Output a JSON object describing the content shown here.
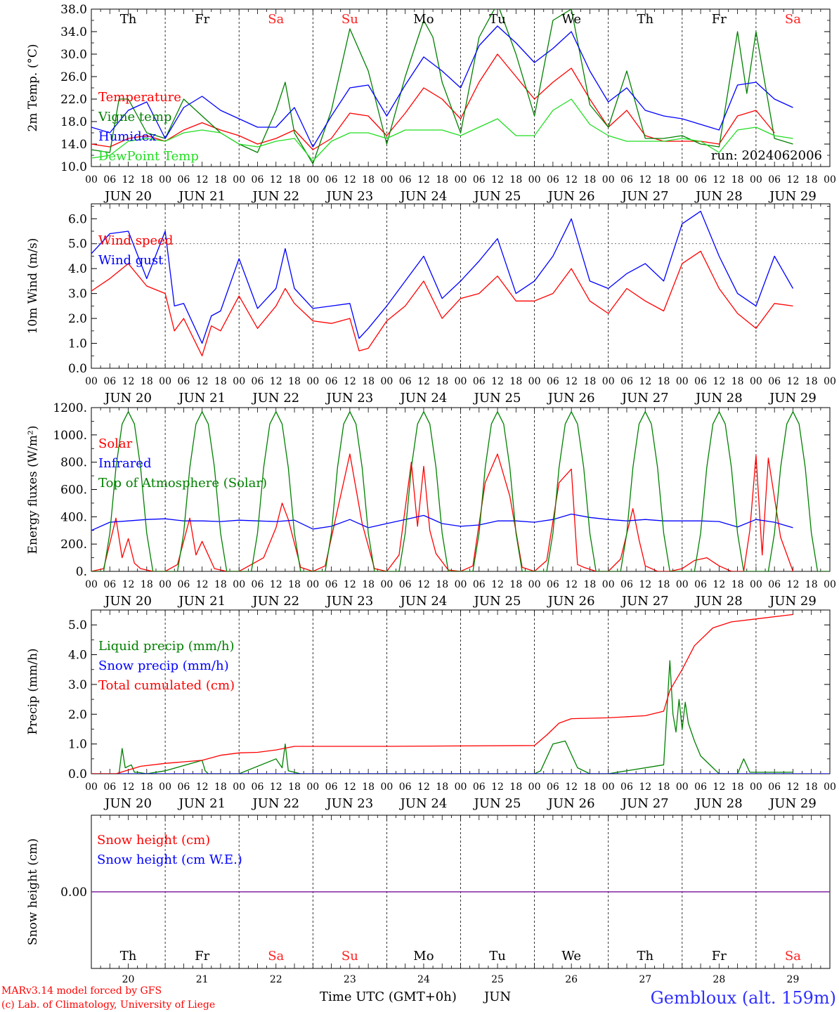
{
  "run_label": "run: 2024062006",
  "footer": {
    "credit_line1": "MARv3.14 model forced by GFS",
    "credit_line2": "(c) Lab. of Climatology, University of Liege",
    "xlabel": "Time UTC (GMT+0h)",
    "month": "JUN",
    "station": "Gembloux (alt. 159m)"
  },
  "days": [
    {
      "abbr": "Th",
      "date": "20",
      "weekend": false
    },
    {
      "abbr": "Fr",
      "date": "21",
      "weekend": false
    },
    {
      "abbr": "Sa",
      "date": "22",
      "weekend": true
    },
    {
      "abbr": "Su",
      "date": "23",
      "weekend": true
    },
    {
      "abbr": "Mo",
      "date": "24",
      "weekend": false
    },
    {
      "abbr": "Tu",
      "date": "25",
      "weekend": false
    },
    {
      "abbr": "We",
      "date": "26",
      "weekend": false
    },
    {
      "abbr": "Th",
      "date": "27",
      "weekend": false
    },
    {
      "abbr": "Fr",
      "date": "28",
      "weekend": false
    },
    {
      "abbr": "Sa",
      "date": "29",
      "weekend": true
    }
  ],
  "hour_ticks": [
    "00",
    "06",
    "12",
    "18"
  ],
  "day_labels": [
    "JUN 20",
    "JUN 21",
    "JUN 22",
    "JUN 23",
    "JUN 24",
    "JUN 25",
    "JUN 26",
    "JUN 27",
    "JUN 28",
    "JUN 29"
  ],
  "colors": {
    "red": "#ff0000",
    "green": "#008000",
    "blue": "#0000ff",
    "lime": "#22dd22",
    "weekend": "#ff2020",
    "purple": "#8020a0",
    "station": "#3030ff"
  },
  "chart_data": [
    {
      "type": "line",
      "ylabel": "2m Temp. (°C)",
      "ylim": [
        10,
        38
      ],
      "yticks": [
        "10.0",
        "14.0",
        "18.0",
        "22.0",
        "26.0",
        "30.0",
        "34.0",
        "38.0"
      ],
      "x_unit": "hours from JUN 20 00 UTC",
      "series": [
        {
          "name": "Temperature",
          "color": "#ff0000",
          "x": [
            0,
            6,
            12,
            18,
            24,
            30,
            36,
            42,
            48,
            54,
            60,
            66,
            72,
            78,
            84,
            90,
            96,
            102,
            108,
            114,
            120,
            126,
            132,
            138,
            144,
            150,
            156,
            162,
            168,
            174,
            180,
            186,
            192,
            198,
            204,
            210,
            216,
            222,
            228,
            234,
            240
          ],
          "y": [
            14.0,
            13.5,
            15.0,
            15.5,
            14.5,
            16.5,
            17.8,
            16.5,
            15.5,
            14.0,
            15.0,
            16.5,
            13.0,
            15.0,
            19.5,
            19.0,
            15.5,
            19.5,
            24.0,
            22.0,
            18.5,
            25.0,
            30.0,
            26.0,
            22.0,
            25.0,
            27.5,
            22.0,
            17.0,
            20.0,
            15.5,
            14.5,
            14.5,
            14.5,
            14.0,
            19.0,
            20.0,
            16.0,
            null,
            null,
            null
          ]
        },
        {
          "name": "Vigne temp",
          "color": "#008000",
          "x": [
            0,
            6,
            9,
            12,
            18,
            24,
            30,
            36,
            42,
            48,
            54,
            60,
            63,
            66,
            72,
            78,
            84,
            90,
            96,
            102,
            108,
            111,
            114,
            120,
            126,
            132,
            138,
            144,
            150,
            156,
            162,
            168,
            174,
            180,
            186,
            192,
            198,
            204,
            210,
            213,
            216,
            222,
            228
          ],
          "y": [
            13.0,
            12.5,
            22.0,
            22.0,
            16.0,
            15.0,
            22.0,
            19.0,
            16.0,
            14.0,
            12.5,
            20.0,
            25.0,
            16.0,
            10.5,
            20.0,
            34.5,
            27.0,
            14.0,
            26.0,
            36.0,
            33.0,
            25.0,
            16.0,
            33.0,
            39.0,
            30.0,
            19.0,
            36.0,
            38.0,
            21.0,
            17.0,
            27.0,
            15.0,
            15.0,
            15.5,
            14.0,
            13.5,
            34.0,
            23.0,
            34.0,
            15.0,
            14.0
          ]
        },
        {
          "name": "Humidex",
          "color": "#0000ff",
          "x": [
            0,
            6,
            12,
            18,
            24,
            30,
            36,
            42,
            48,
            54,
            60,
            66,
            72,
            78,
            84,
            90,
            96,
            102,
            108,
            114,
            120,
            126,
            132,
            138,
            144,
            150,
            156,
            162,
            168,
            174,
            180,
            186,
            192,
            198,
            204,
            210,
            216,
            222,
            228
          ],
          "y": [
            17.0,
            16.0,
            20.0,
            21.5,
            15.0,
            20.5,
            22.5,
            20.0,
            18.5,
            17.0,
            17.0,
            20.5,
            13.5,
            19.0,
            24.0,
            24.5,
            19.0,
            24.5,
            29.5,
            27.0,
            24.0,
            31.5,
            35.0,
            32.0,
            28.5,
            31.0,
            34.0,
            27.0,
            21.5,
            24.0,
            20.0,
            19.0,
            18.5,
            17.5,
            16.5,
            24.5,
            25.0,
            22.0,
            20.5
          ]
        },
        {
          "name": "DewPoint Temp",
          "color": "#22dd22",
          "x": [
            0,
            6,
            12,
            18,
            24,
            30,
            36,
            42,
            48,
            54,
            60,
            66,
            72,
            78,
            84,
            90,
            96,
            102,
            108,
            114,
            120,
            126,
            132,
            138,
            144,
            150,
            156,
            162,
            168,
            174,
            180,
            186,
            192,
            198,
            204,
            210,
            216,
            222,
            228
          ],
          "y": [
            11.5,
            12.0,
            14.5,
            15.0,
            14.5,
            16.0,
            16.5,
            16.0,
            14.0,
            13.5,
            14.5,
            15.0,
            11.0,
            14.5,
            16.0,
            16.0,
            15.0,
            16.5,
            16.5,
            16.5,
            15.5,
            17.0,
            18.5,
            15.5,
            15.5,
            20.0,
            22.0,
            17.5,
            15.5,
            14.5,
            14.5,
            14.5,
            15.0,
            14.5,
            12.5,
            16.5,
            17.0,
            15.5,
            15.0
          ]
        }
      ]
    },
    {
      "type": "line",
      "ylabel": "10m Wind (m/s)",
      "ylim": [
        0,
        6.6
      ],
      "yticks": [
        "0.0",
        "1.0",
        "2.0",
        "3.0",
        "4.0",
        "5.0",
        "6.0"
      ],
      "reference_line": 5.0,
      "series": [
        {
          "name": "Wind speed",
          "color": "#ff0000",
          "x": [
            0,
            6,
            12,
            18,
            24,
            27,
            30,
            36,
            39,
            42,
            48,
            54,
            60,
            63,
            66,
            72,
            78,
            84,
            87,
            90,
            96,
            102,
            108,
            114,
            120,
            126,
            132,
            138,
            144,
            150,
            156,
            162,
            168,
            174,
            180,
            186,
            192,
            198,
            204,
            210,
            216,
            222,
            228
          ],
          "y": [
            3.1,
            3.6,
            4.2,
            3.3,
            3.0,
            1.5,
            2.0,
            0.5,
            1.7,
            1.5,
            2.9,
            1.6,
            2.5,
            3.2,
            2.6,
            1.9,
            1.8,
            2.0,
            0.7,
            0.8,
            1.9,
            2.5,
            3.5,
            2.0,
            2.8,
            3.0,
            3.7,
            2.7,
            2.7,
            3.0,
            4.0,
            2.7,
            2.2,
            3.2,
            2.7,
            2.3,
            4.2,
            4.7,
            3.2,
            2.2,
            1.6,
            2.6,
            2.5
          ]
        },
        {
          "name": "Wind gust",
          "color": "#0000ff",
          "x": [
            0,
            6,
            12,
            18,
            24,
            27,
            30,
            36,
            39,
            42,
            48,
            54,
            60,
            63,
            66,
            72,
            78,
            84,
            87,
            90,
            96,
            102,
            108,
            114,
            120,
            126,
            132,
            138,
            144,
            150,
            156,
            162,
            168,
            174,
            180,
            186,
            192,
            198,
            204,
            210,
            216,
            222,
            228
          ],
          "y": [
            4.6,
            5.4,
            5.5,
            3.6,
            5.5,
            2.5,
            2.6,
            1.0,
            2.1,
            2.3,
            4.4,
            2.4,
            3.2,
            4.8,
            3.2,
            2.4,
            2.5,
            2.6,
            1.2,
            1.6,
            2.5,
            3.5,
            4.5,
            2.8,
            3.5,
            4.3,
            5.2,
            3.0,
            3.5,
            4.5,
            6.0,
            3.5,
            3.2,
            3.8,
            4.2,
            3.5,
            5.8,
            6.3,
            4.5,
            3.0,
            2.5,
            4.5,
            3.2
          ]
        }
      ]
    },
    {
      "type": "line",
      "ylabel": "Energy fluxes (W/m²)",
      "ylim": [
        0,
        1200
      ],
      "yticks": [
        "0.",
        "200.",
        "400.",
        "600.",
        "800.",
        "1000.",
        "1200."
      ],
      "series": [
        {
          "name": "Solar",
          "color": "#ff0000",
          "x": [
            0,
            4,
            8,
            10,
            12,
            14,
            16,
            20,
            24,
            28,
            32,
            34,
            36,
            40,
            44,
            48,
            52,
            56,
            60,
            62,
            64,
            68,
            72,
            76,
            80,
            84,
            88,
            92,
            96,
            100,
            104,
            106,
            108,
            110,
            112,
            116,
            120,
            124,
            128,
            132,
            136,
            140,
            144,
            148,
            152,
            156,
            158,
            160,
            164,
            168,
            172,
            176,
            178,
            180,
            184,
            188,
            192,
            196,
            200,
            204,
            208,
            212,
            214,
            216,
            218,
            220,
            224,
            228
          ],
          "y": [
            0,
            20,
            390,
            100,
            240,
            60,
            20,
            0,
            0,
            50,
            390,
            120,
            220,
            20,
            0,
            0,
            50,
            100,
            320,
            500,
            380,
            30,
            0,
            40,
            450,
            860,
            350,
            20,
            0,
            120,
            800,
            330,
            770,
            300,
            130,
            10,
            0,
            40,
            650,
            860,
            550,
            30,
            0,
            80,
            650,
            750,
            50,
            30,
            0,
            0,
            90,
            460,
            230,
            40,
            0,
            0,
            20,
            80,
            100,
            40,
            0,
            0,
            300,
            850,
            120,
            830,
            250,
            0
          ]
        },
        {
          "name": "Infrared",
          "color": "#0000ff",
          "x": [
            0,
            6,
            12,
            18,
            24,
            30,
            36,
            42,
            48,
            54,
            60,
            66,
            72,
            78,
            84,
            90,
            96,
            102,
            108,
            114,
            120,
            126,
            132,
            138,
            144,
            150,
            156,
            162,
            168,
            174,
            180,
            186,
            192,
            198,
            204,
            210,
            216,
            222,
            228
          ],
          "y": [
            300,
            360,
            370,
            380,
            385,
            370,
            370,
            365,
            375,
            370,
            365,
            375,
            310,
            330,
            380,
            320,
            350,
            380,
            410,
            350,
            330,
            340,
            370,
            370,
            360,
            380,
            420,
            395,
            380,
            370,
            380,
            370,
            370,
            370,
            365,
            325,
            380,
            360,
            320
          ]
        },
        {
          "name": "Top of Atmosphere (Solar)",
          "color": "#008000",
          "x": [
            0,
            4,
            6,
            8,
            10,
            12,
            14,
            16,
            18,
            20,
            24
          ],
          "y": [
            0,
            0,
            280,
            760,
            1080,
            1170,
            1080,
            760,
            280,
            0,
            0
          ],
          "note": "repeats daily"
        }
      ]
    },
    {
      "type": "line",
      "ylabel": "Precip (mm/h)",
      "ylim": [
        0,
        5.5
      ],
      "yticks": [
        "0.0",
        "1.0",
        "2.0",
        "3.0",
        "4.0",
        "5.0"
      ],
      "series": [
        {
          "name": "Liquid precip (mm/h)",
          "color": "#008000",
          "x": [
            0,
            9,
            10,
            11,
            13,
            14,
            15,
            18,
            24,
            36,
            37,
            38,
            48,
            60,
            62,
            63,
            64,
            68,
            144,
            146,
            150,
            154,
            158,
            162,
            168,
            186,
            188,
            189,
            190,
            191,
            192,
            193,
            194,
            196,
            198,
            204,
            210,
            212,
            214,
            228
          ],
          "y": [
            0,
            0,
            0.85,
            0.2,
            0.3,
            0.05,
            0.05,
            0,
            0.1,
            0.45,
            0.1,
            0,
            0,
            0.5,
            0.2,
            1.0,
            0.1,
            0,
            0,
            0.1,
            1.0,
            1.1,
            0.2,
            0,
            0,
            0.3,
            3.8,
            2.0,
            1.4,
            2.5,
            1.5,
            2.4,
            1.7,
            1.1,
            0.6,
            0,
            0,
            0.5,
            0.05,
            0.05
          ]
        },
        {
          "name": "Snow precip (mm/h)",
          "color": "#0000ff",
          "x": [
            0,
            240
          ],
          "y": [
            0,
            0
          ]
        },
        {
          "name": "Total cumulated (cm)",
          "color": "#ff0000",
          "x": [
            0,
            8,
            16,
            24,
            36,
            42,
            48,
            54,
            60,
            66,
            72,
            96,
            144,
            148,
            152,
            156,
            168,
            180,
            186,
            188,
            192,
            196,
            202,
            208,
            216,
            228
          ],
          "y": [
            0,
            0,
            0.25,
            0.35,
            0.45,
            0.62,
            0.7,
            0.72,
            0.8,
            0.92,
            0.92,
            0.92,
            0.95,
            1.3,
            1.7,
            1.85,
            1.88,
            1.95,
            2.1,
            2.8,
            3.5,
            4.3,
            4.9,
            5.1,
            5.2,
            5.35
          ]
        }
      ]
    },
    {
      "type": "line",
      "ylabel": "Snow height (cm)",
      "yticks": [
        "0.00"
      ],
      "series": [
        {
          "name": "Snow height (cm)",
          "color": "#ff0000",
          "x": [
            0,
            240
          ],
          "y": [
            0,
            0
          ]
        },
        {
          "name": "Snow height (cm W.E.)",
          "color": "#0000ff",
          "x": [
            0,
            240
          ],
          "y": [
            0,
            0
          ]
        }
      ]
    }
  ]
}
